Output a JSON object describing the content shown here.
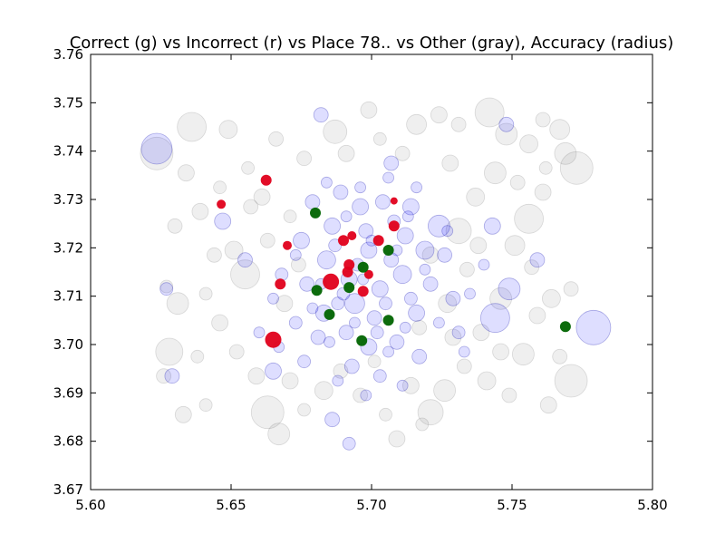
{
  "chart_data": {
    "type": "scatter",
    "title": "Correct (g) vs Incorrect (r) vs Place 78.. vs Other (gray),  Accuracy (radius)",
    "xlabel": "",
    "ylabel": "",
    "xlim": [
      5.6,
      5.8
    ],
    "ylim": [
      3.67,
      3.76
    ],
    "x_ticks": [
      5.6,
      5.65,
      5.7,
      5.75,
      5.8
    ],
    "x_tick_labels": [
      "5.60",
      "5.65",
      "5.70",
      "5.75",
      "5.80"
    ],
    "y_ticks": [
      3.67,
      3.68,
      3.69,
      3.7,
      3.71,
      3.72,
      3.73,
      3.74,
      3.75,
      3.76
    ],
    "y_tick_labels": [
      "3.67",
      "3.68",
      "3.69",
      "3.70",
      "3.71",
      "3.72",
      "3.73",
      "3.74",
      "3.75",
      "3.76"
    ],
    "grid": false,
    "legend": "none",
    "colors": {
      "correct": "#006400",
      "incorrect": "#e0001b",
      "place": "#0000ff",
      "other": "#808080"
    },
    "series": [
      {
        "key": "other",
        "points": [
          {
            "x": 5.6235,
            "y": 3.7395,
            "r": 18
          },
          {
            "x": 5.636,
            "y": 3.745,
            "r": 16
          },
          {
            "x": 5.634,
            "y": 3.7355,
            "r": 9
          },
          {
            "x": 5.63,
            "y": 3.7245,
            "r": 8
          },
          {
            "x": 5.627,
            "y": 3.712,
            "r": 7
          },
          {
            "x": 5.631,
            "y": 3.7085,
            "r": 12
          },
          {
            "x": 5.628,
            "y": 3.6985,
            "r": 15
          },
          {
            "x": 5.626,
            "y": 3.6935,
            "r": 8
          },
          {
            "x": 5.633,
            "y": 3.6855,
            "r": 9
          },
          {
            "x": 5.641,
            "y": 3.6875,
            "r": 7
          },
          {
            "x": 5.655,
            "y": 3.7145,
            "r": 16
          },
          {
            "x": 5.651,
            "y": 3.7195,
            "r": 10
          },
          {
            "x": 5.663,
            "y": 3.686,
            "r": 18
          },
          {
            "x": 5.667,
            "y": 3.6815,
            "r": 12
          },
          {
            "x": 5.671,
            "y": 3.6925,
            "r": 9
          },
          {
            "x": 5.666,
            "y": 3.7425,
            "r": 8
          },
          {
            "x": 5.649,
            "y": 3.7445,
            "r": 10
          },
          {
            "x": 5.656,
            "y": 3.7365,
            "r": 7
          },
          {
            "x": 5.687,
            "y": 3.744,
            "r": 13
          },
          {
            "x": 5.699,
            "y": 3.7485,
            "r": 9
          },
          {
            "x": 5.716,
            "y": 3.7455,
            "r": 11
          },
          {
            "x": 5.724,
            "y": 3.7475,
            "r": 9
          },
          {
            "x": 5.731,
            "y": 3.7455,
            "r": 8
          },
          {
            "x": 5.742,
            "y": 3.748,
            "r": 16
          },
          {
            "x": 5.748,
            "y": 3.7435,
            "r": 12
          },
          {
            "x": 5.756,
            "y": 3.7415,
            "r": 10
          },
          {
            "x": 5.761,
            "y": 3.7465,
            "r": 8
          },
          {
            "x": 5.767,
            "y": 3.7445,
            "r": 11
          },
          {
            "x": 5.773,
            "y": 3.7365,
            "r": 18
          },
          {
            "x": 5.769,
            "y": 3.7395,
            "r": 12
          },
          {
            "x": 5.761,
            "y": 3.7315,
            "r": 9
          },
          {
            "x": 5.756,
            "y": 3.726,
            "r": 16
          },
          {
            "x": 5.751,
            "y": 3.7205,
            "r": 11
          },
          {
            "x": 5.757,
            "y": 3.716,
            "r": 8
          },
          {
            "x": 5.764,
            "y": 3.7095,
            "r": 10
          },
          {
            "x": 5.771,
            "y": 3.7115,
            "r": 8
          },
          {
            "x": 5.759,
            "y": 3.706,
            "r": 9
          },
          {
            "x": 5.754,
            "y": 3.698,
            "r": 12
          },
          {
            "x": 5.767,
            "y": 3.6975,
            "r": 8
          },
          {
            "x": 5.771,
            "y": 3.6925,
            "r": 18
          },
          {
            "x": 5.763,
            "y": 3.6875,
            "r": 9
          },
          {
            "x": 5.749,
            "y": 3.6895,
            "r": 8
          },
          {
            "x": 5.741,
            "y": 3.6925,
            "r": 10
          },
          {
            "x": 5.733,
            "y": 3.6955,
            "r": 8
          },
          {
            "x": 5.726,
            "y": 3.6905,
            "r": 12
          },
          {
            "x": 5.721,
            "y": 3.686,
            "r": 14
          },
          {
            "x": 5.714,
            "y": 3.6915,
            "r": 9
          },
          {
            "x": 5.705,
            "y": 3.6855,
            "r": 7
          },
          {
            "x": 5.696,
            "y": 3.6895,
            "r": 8
          },
          {
            "x": 5.683,
            "y": 3.6905,
            "r": 10
          },
          {
            "x": 5.676,
            "y": 3.6865,
            "r": 7
          },
          {
            "x": 5.709,
            "y": 3.6805,
            "r": 9
          },
          {
            "x": 5.718,
            "y": 3.6835,
            "r": 7
          },
          {
            "x": 5.731,
            "y": 3.7235,
            "r": 14
          },
          {
            "x": 5.737,
            "y": 3.7305,
            "r": 10
          },
          {
            "x": 5.744,
            "y": 3.7355,
            "r": 12
          },
          {
            "x": 5.728,
            "y": 3.7375,
            "r": 9
          },
          {
            "x": 5.711,
            "y": 3.7395,
            "r": 8
          },
          {
            "x": 5.703,
            "y": 3.7425,
            "r": 7
          },
          {
            "x": 5.691,
            "y": 3.7395,
            "r": 9
          },
          {
            "x": 5.676,
            "y": 3.7385,
            "r": 8
          },
          {
            "x": 5.661,
            "y": 3.7305,
            "r": 9
          },
          {
            "x": 5.646,
            "y": 3.7325,
            "r": 7
          },
          {
            "x": 5.639,
            "y": 3.7275,
            "r": 9
          },
          {
            "x": 5.644,
            "y": 3.7185,
            "r": 8
          },
          {
            "x": 5.641,
            "y": 3.7105,
            "r": 7
          },
          {
            "x": 5.646,
            "y": 3.7045,
            "r": 9
          },
          {
            "x": 5.652,
            "y": 3.6985,
            "r": 8
          },
          {
            "x": 5.659,
            "y": 3.6935,
            "r": 9
          },
          {
            "x": 5.638,
            "y": 3.6975,
            "r": 7
          },
          {
            "x": 5.746,
            "y": 3.7095,
            "r": 12
          },
          {
            "x": 5.739,
            "y": 3.7025,
            "r": 9
          },
          {
            "x": 5.734,
            "y": 3.7155,
            "r": 8
          },
          {
            "x": 5.727,
            "y": 3.7085,
            "r": 10
          },
          {
            "x": 5.738,
            "y": 3.7205,
            "r": 9
          },
          {
            "x": 5.752,
            "y": 3.7335,
            "r": 8
          },
          {
            "x": 5.762,
            "y": 3.7365,
            "r": 7
          },
          {
            "x": 5.721,
            "y": 3.7185,
            "r": 9
          },
          {
            "x": 5.717,
            "y": 3.7035,
            "r": 8
          },
          {
            "x": 5.674,
            "y": 3.7165,
            "r": 8
          },
          {
            "x": 5.669,
            "y": 3.7085,
            "r": 9
          },
          {
            "x": 5.663,
            "y": 3.7215,
            "r": 8
          },
          {
            "x": 5.671,
            "y": 3.7265,
            "r": 7
          },
          {
            "x": 5.746,
            "y": 3.6985,
            "r": 9
          },
          {
            "x": 5.689,
            "y": 3.6945,
            "r": 8
          },
          {
            "x": 5.701,
            "y": 3.6965,
            "r": 7
          },
          {
            "x": 5.729,
            "y": 3.7015,
            "r": 9
          },
          {
            "x": 5.657,
            "y": 3.7285,
            "r": 8
          }
        ]
      },
      {
        "key": "place",
        "points": [
          {
            "x": 5.6235,
            "y": 3.7405,
            "r": 17
          },
          {
            "x": 5.627,
            "y": 3.7115,
            "r": 7
          },
          {
            "x": 5.629,
            "y": 3.6935,
            "r": 8
          },
          {
            "x": 5.647,
            "y": 3.7255,
            "r": 9
          },
          {
            "x": 5.655,
            "y": 3.7175,
            "r": 8
          },
          {
            "x": 5.665,
            "y": 3.6945,
            "r": 9
          },
          {
            "x": 5.682,
            "y": 3.7475,
            "r": 8
          },
          {
            "x": 5.692,
            "y": 3.6795,
            "r": 7
          },
          {
            "x": 5.748,
            "y": 3.7455,
            "r": 8
          },
          {
            "x": 5.743,
            "y": 3.7245,
            "r": 9
          },
          {
            "x": 5.744,
            "y": 3.7055,
            "r": 16
          },
          {
            "x": 5.749,
            "y": 3.7115,
            "r": 12
          },
          {
            "x": 5.779,
            "y": 3.7035,
            "r": 19
          },
          {
            "x": 5.759,
            "y": 3.7175,
            "r": 8
          },
          {
            "x": 5.686,
            "y": 3.6845,
            "r": 8
          },
          {
            "x": 5.707,
            "y": 3.7375,
            "r": 8
          },
          {
            "x": 5.724,
            "y": 3.7245,
            "r": 12
          },
          {
            "x": 5.719,
            "y": 3.7195,
            "r": 10
          },
          {
            "x": 5.714,
            "y": 3.7285,
            "r": 9
          },
          {
            "x": 5.679,
            "y": 3.7295,
            "r": 8
          },
          {
            "x": 5.675,
            "y": 3.7215,
            "r": 9
          },
          {
            "x": 5.677,
            "y": 3.7125,
            "r": 8
          },
          {
            "x": 5.683,
            "y": 3.7065,
            "r": 9
          },
          {
            "x": 5.691,
            "y": 3.7025,
            "r": 8
          },
          {
            "x": 5.699,
            "y": 3.6995,
            "r": 9
          },
          {
            "x": 5.709,
            "y": 3.7005,
            "r": 8
          },
          {
            "x": 5.716,
            "y": 3.7065,
            "r": 9
          },
          {
            "x": 5.721,
            "y": 3.7125,
            "r": 8
          },
          {
            "x": 5.712,
            "y": 3.7225,
            "r": 9
          },
          {
            "x": 5.704,
            "y": 3.7295,
            "r": 8
          },
          {
            "x": 5.696,
            "y": 3.7285,
            "r": 9
          },
          {
            "x": 5.689,
            "y": 3.7315,
            "r": 8
          },
          {
            "x": 5.686,
            "y": 3.7245,
            "r": 9
          },
          {
            "x": 5.684,
            "y": 3.7175,
            "r": 10
          },
          {
            "x": 5.694,
            "y": 3.7085,
            "r": 11
          },
          {
            "x": 5.703,
            "y": 3.7115,
            "r": 9
          },
          {
            "x": 5.711,
            "y": 3.7145,
            "r": 10
          },
          {
            "x": 5.699,
            "y": 3.7195,
            "r": 9
          },
          {
            "x": 5.707,
            "y": 3.7175,
            "r": 8
          },
          {
            "x": 5.692,
            "y": 3.7135,
            "r": 9
          },
          {
            "x": 5.701,
            "y": 3.7055,
            "r": 8
          },
          {
            "x": 5.688,
            "y": 3.7085,
            "r": 7
          },
          {
            "x": 5.681,
            "y": 3.7015,
            "r": 8
          },
          {
            "x": 5.673,
            "y": 3.7045,
            "r": 7
          },
          {
            "x": 5.668,
            "y": 3.7145,
            "r": 7
          },
          {
            "x": 5.726,
            "y": 3.7185,
            "r": 8
          },
          {
            "x": 5.729,
            "y": 3.7095,
            "r": 8
          },
          {
            "x": 5.731,
            "y": 3.7025,
            "r": 7
          },
          {
            "x": 5.717,
            "y": 3.6975,
            "r": 8
          },
          {
            "x": 5.703,
            "y": 3.6935,
            "r": 7
          },
          {
            "x": 5.693,
            "y": 3.6955,
            "r": 8
          },
          {
            "x": 5.676,
            "y": 3.6965,
            "r": 7
          },
          {
            "x": 5.698,
            "y": 3.7235,
            "r": 8
          },
          {
            "x": 5.708,
            "y": 3.7255,
            "r": 7
          },
          {
            "x": 5.695,
            "y": 3.7165,
            "r": 7
          },
          {
            "x": 5.705,
            "y": 3.7085,
            "r": 7
          },
          {
            "x": 5.687,
            "y": 3.7205,
            "r": 7
          },
          {
            "x": 5.714,
            "y": 3.7095,
            "r": 7
          },
          {
            "x": 5.702,
            "y": 3.7025,
            "r": 7
          },
          {
            "x": 5.69,
            "y": 3.7105,
            "r": 7
          },
          {
            "x": 5.682,
            "y": 3.7125,
            "r": 6
          },
          {
            "x": 5.709,
            "y": 3.7195,
            "r": 6
          },
          {
            "x": 5.697,
            "y": 3.7135,
            "r": 6
          },
          {
            "x": 5.694,
            "y": 3.7045,
            "r": 6
          },
          {
            "x": 5.712,
            "y": 3.7035,
            "r": 6
          },
          {
            "x": 5.679,
            "y": 3.7075,
            "r": 6
          },
          {
            "x": 5.719,
            "y": 3.7155,
            "r": 6
          },
          {
            "x": 5.7,
            "y": 3.7215,
            "r": 6
          },
          {
            "x": 5.691,
            "y": 3.7265,
            "r": 6
          },
          {
            "x": 5.713,
            "y": 3.7265,
            "r": 6
          },
          {
            "x": 5.685,
            "y": 3.7005,
            "r": 6
          },
          {
            "x": 5.706,
            "y": 3.6985,
            "r": 6
          },
          {
            "x": 5.724,
            "y": 3.7045,
            "r": 6
          },
          {
            "x": 5.673,
            "y": 3.7185,
            "r": 6
          },
          {
            "x": 5.665,
            "y": 3.7095,
            "r": 6
          },
          {
            "x": 5.727,
            "y": 3.7235,
            "r": 6
          },
          {
            "x": 5.735,
            "y": 3.7105,
            "r": 6
          },
          {
            "x": 5.74,
            "y": 3.7165,
            "r": 6
          },
          {
            "x": 5.66,
            "y": 3.7025,
            "r": 6
          },
          {
            "x": 5.667,
            "y": 3.6995,
            "r": 6
          },
          {
            "x": 5.733,
            "y": 3.6985,
            "r": 6
          },
          {
            "x": 5.698,
            "y": 3.6895,
            "r": 6
          },
          {
            "x": 5.688,
            "y": 3.6925,
            "r": 6
          },
          {
            "x": 5.711,
            "y": 3.6915,
            "r": 6
          },
          {
            "x": 5.696,
            "y": 3.7325,
            "r": 6
          },
          {
            "x": 5.706,
            "y": 3.7345,
            "r": 6
          },
          {
            "x": 5.684,
            "y": 3.7335,
            "r": 6
          },
          {
            "x": 5.716,
            "y": 3.7325,
            "r": 6
          }
        ]
      },
      {
        "key": "incorrect",
        "points": [
          {
            "x": 5.6625,
            "y": 3.734,
            "r": 6
          },
          {
            "x": 5.6465,
            "y": 3.729,
            "r": 5
          },
          {
            "x": 5.67,
            "y": 3.7205,
            "r": 5
          },
          {
            "x": 5.6675,
            "y": 3.7125,
            "r": 6
          },
          {
            "x": 5.665,
            "y": 3.701,
            "r": 9
          },
          {
            "x": 5.6855,
            "y": 3.713,
            "r": 9
          },
          {
            "x": 5.69,
            "y": 3.7215,
            "r": 6
          },
          {
            "x": 5.692,
            "y": 3.7165,
            "r": 6
          },
          {
            "x": 5.6915,
            "y": 3.715,
            "r": 6
          },
          {
            "x": 5.697,
            "y": 3.711,
            "r": 6
          },
          {
            "x": 5.699,
            "y": 3.7145,
            "r": 5
          },
          {
            "x": 5.7025,
            "y": 3.7215,
            "r": 6
          },
          {
            "x": 5.708,
            "y": 3.7245,
            "r": 6
          },
          {
            "x": 5.708,
            "y": 3.7297,
            "r": 4
          },
          {
            "x": 5.693,
            "y": 3.7225,
            "r": 5
          }
        ]
      },
      {
        "key": "correct",
        "points": [
          {
            "x": 5.68,
            "y": 3.7272,
            "r": 6
          },
          {
            "x": 5.6805,
            "y": 3.7112,
            "r": 6
          },
          {
            "x": 5.685,
            "y": 3.7062,
            "r": 6
          },
          {
            "x": 5.697,
            "y": 3.716,
            "r": 6
          },
          {
            "x": 5.6965,
            "y": 3.7008,
            "r": 6
          },
          {
            "x": 5.706,
            "y": 3.7195,
            "r": 6
          },
          {
            "x": 5.706,
            "y": 3.705,
            "r": 6
          },
          {
            "x": 5.769,
            "y": 3.7037,
            "r": 6
          },
          {
            "x": 5.692,
            "y": 3.7118,
            "r": 6
          }
        ]
      }
    ]
  }
}
